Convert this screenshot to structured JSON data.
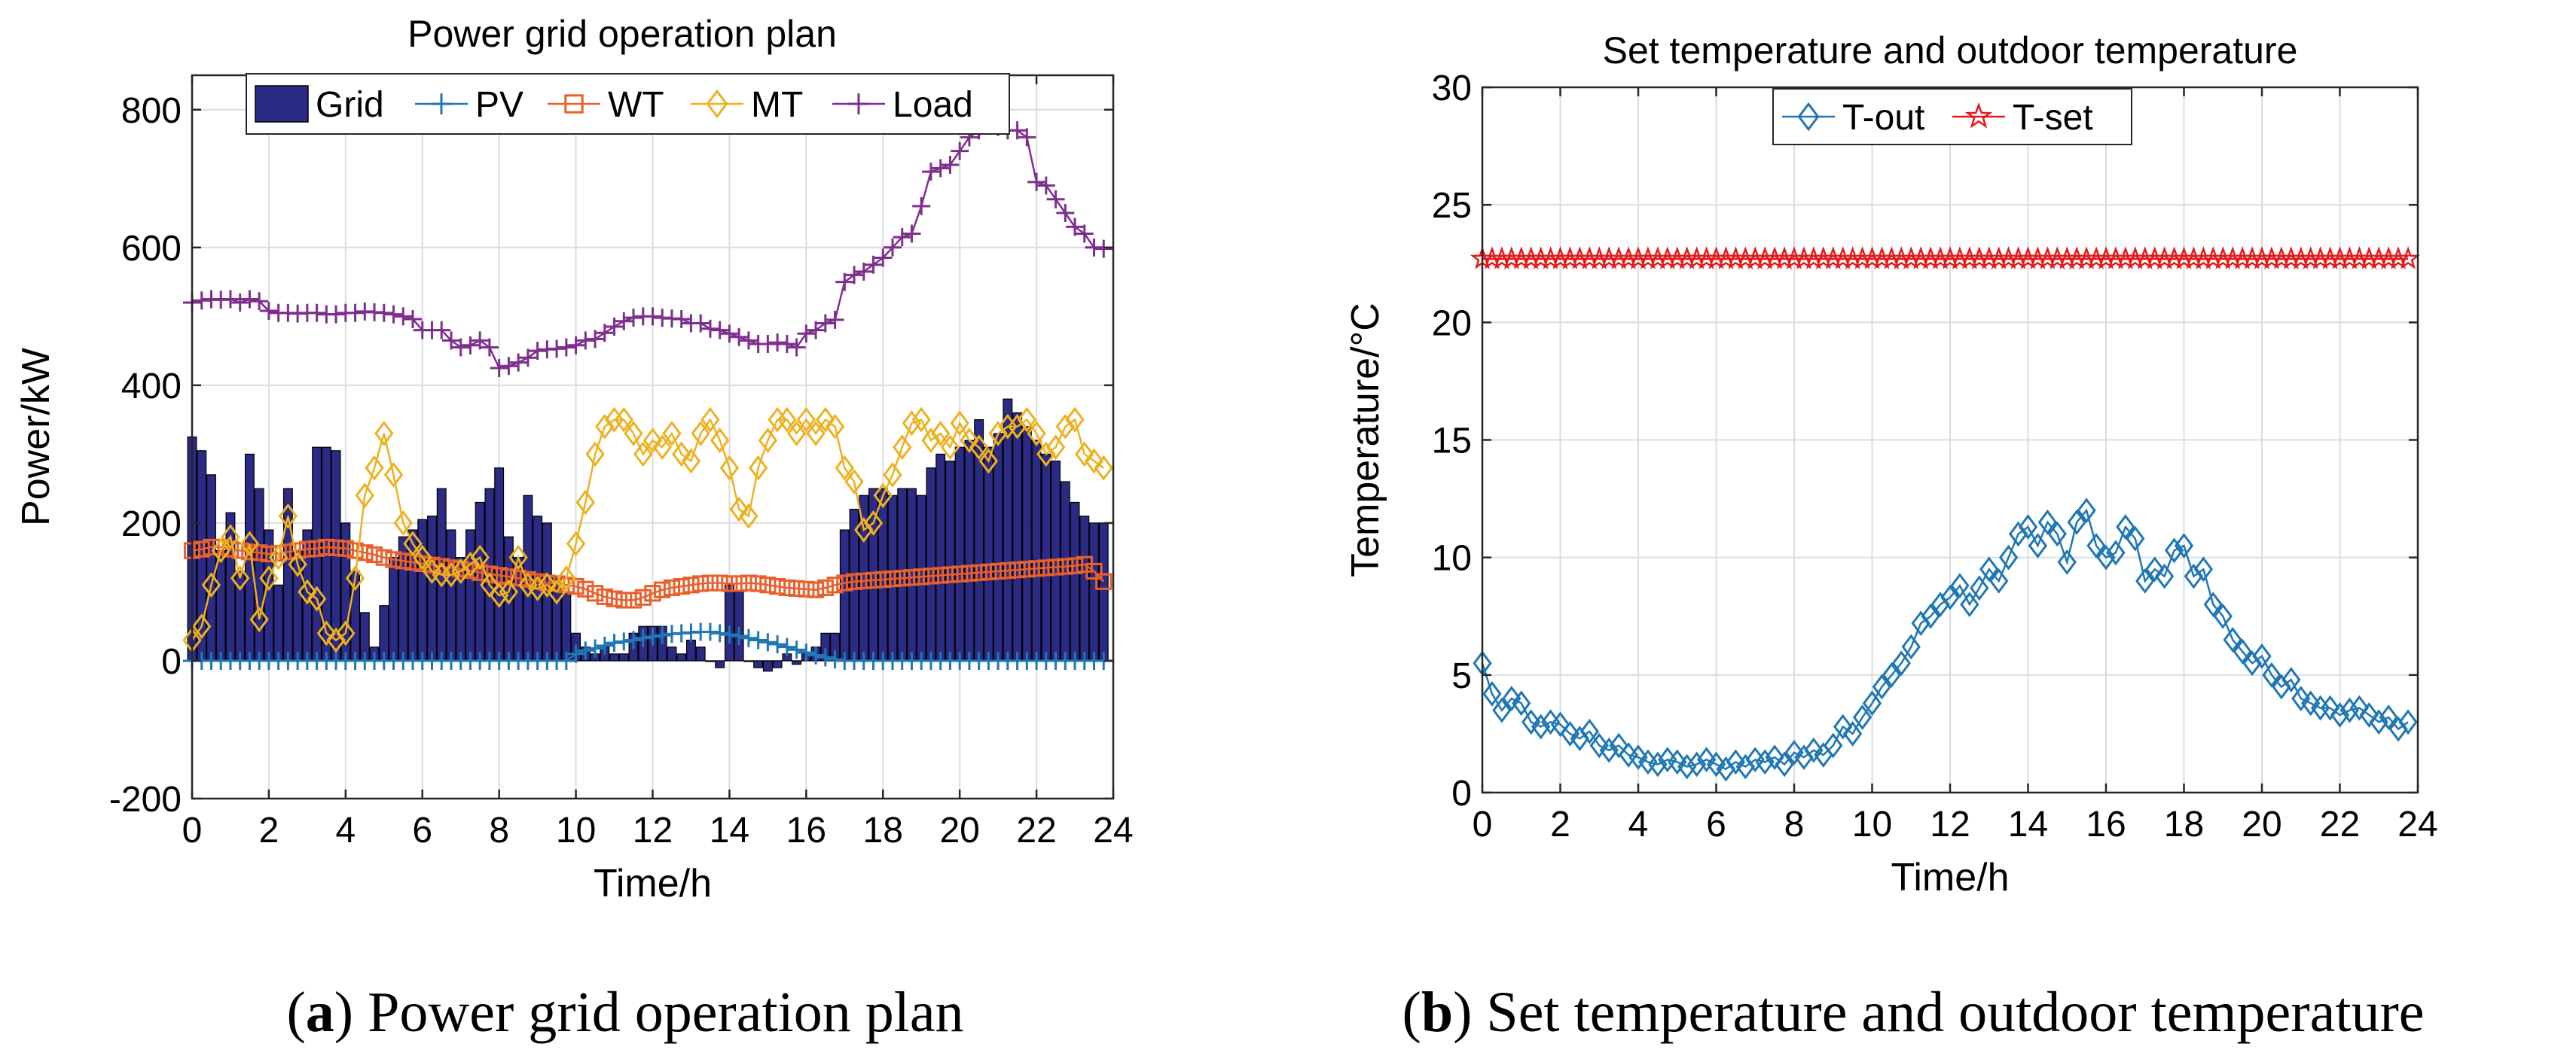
{
  "captions": [
    {
      "open": "(",
      "letter": "a",
      "close": ")",
      "text": " Power grid operation plan"
    },
    {
      "open": "(",
      "letter": "b",
      "close": ")",
      "text": " Set temperature and outdoor temperature"
    }
  ],
  "chart_data": [
    {
      "type": "bar+line",
      "title": "Power grid operation plan",
      "xlabel": "Time/h",
      "ylabel": "Power/kW",
      "xlim": [
        0,
        24
      ],
      "ylim": [
        -200,
        850
      ],
      "xticks": [
        "0",
        "2",
        "4",
        "6",
        "8",
        "10",
        "12",
        "14",
        "16",
        "18",
        "20",
        "22",
        "24"
      ],
      "yticks": [
        "-200",
        "0",
        "200",
        "400",
        "600",
        "800"
      ],
      "grid": true,
      "legend_position": "top",
      "x": [
        0,
        0.25,
        0.5,
        0.75,
        1,
        1.25,
        1.5,
        1.75,
        2,
        2.25,
        2.5,
        2.75,
        3,
        3.25,
        3.5,
        3.75,
        4,
        4.25,
        4.5,
        4.75,
        5,
        5.25,
        5.5,
        5.75,
        6,
        6.25,
        6.5,
        6.75,
        7,
        7.25,
        7.5,
        7.75,
        8,
        8.25,
        8.5,
        8.75,
        9,
        9.25,
        9.5,
        9.75,
        10,
        10.25,
        10.5,
        10.75,
        11,
        11.25,
        11.5,
        11.75,
        12,
        12.25,
        12.5,
        12.75,
        13,
        13.25,
        13.5,
        13.75,
        14,
        14.25,
        14.5,
        14.75,
        15,
        15.25,
        15.5,
        15.75,
        16,
        16.25,
        16.5,
        16.75,
        17,
        17.25,
        17.5,
        17.75,
        18,
        18.25,
        18.5,
        18.75,
        19,
        19.25,
        19.5,
        19.75,
        20,
        20.25,
        20.5,
        20.75,
        21,
        21.25,
        21.5,
        21.75,
        22,
        22.25,
        22.5,
        22.75,
        23,
        23.25,
        23.5,
        23.75
      ],
      "series": [
        {
          "name": "Grid",
          "kind": "bar",
          "color": "#2b2a85",
          "values": [
            325,
            305,
            270,
            160,
            215,
            130,
            300,
            250,
            190,
            110,
            250,
            160,
            190,
            310,
            310,
            305,
            200,
            130,
            70,
            20,
            80,
            150,
            180,
            190,
            205,
            210,
            250,
            190,
            150,
            190,
            230,
            250,
            280,
            180,
            150,
            240,
            210,
            200,
            120,
            100,
            40,
            20,
            10,
            20,
            10,
            10,
            40,
            50,
            50,
            50,
            20,
            10,
            30,
            20,
            0,
            -10,
            110,
            100,
            0,
            -10,
            -15,
            -10,
            10,
            -5,
            10,
            20,
            40,
            40,
            190,
            220,
            240,
            250,
            250,
            240,
            250,
            250,
            240,
            280,
            300,
            290,
            310,
            320,
            350,
            310,
            330,
            380,
            360,
            340,
            320,
            300,
            290,
            260,
            230,
            210,
            200,
            200
          ]
        },
        {
          "name": "PV",
          "kind": "line",
          "color": "#1f77b4",
          "marker": "plus",
          "values": [
            0,
            0,
            0,
            0,
            0,
            0,
            0,
            0,
            0,
            0,
            0,
            0,
            0,
            0,
            0,
            0,
            0,
            0,
            0,
            0,
            0,
            0,
            0,
            0,
            0,
            0,
            0,
            0,
            0,
            0,
            0,
            0,
            0,
            0,
            0,
            0,
            0,
            0,
            0,
            0,
            10,
            15,
            18,
            22,
            26,
            28,
            30,
            33,
            35,
            37,
            39,
            40,
            41,
            42,
            42,
            40,
            38,
            36,
            33,
            30,
            27,
            24,
            20,
            16,
            12,
            8,
            5,
            2,
            0,
            0,
            0,
            0,
            0,
            0,
            0,
            0,
            0,
            0,
            0,
            0,
            0,
            0,
            0,
            0,
            0,
            0,
            0,
            0,
            0,
            0,
            0,
            0,
            0,
            0,
            0,
            0
          ]
        },
        {
          "name": "WT",
          "kind": "line",
          "color": "#e8602c",
          "marker": "square",
          "values": [
            160,
            162,
            165,
            165,
            162,
            160,
            158,
            157,
            155,
            156,
            158,
            160,
            162,
            163,
            165,
            164,
            163,
            160,
            157,
            154,
            150,
            147,
            145,
            143,
            141,
            139,
            137,
            135,
            133,
            131,
            128,
            126,
            124,
            122,
            120,
            118,
            115,
            113,
            112,
            110,
            108,
            104,
            98,
            93,
            90,
            88,
            88,
            92,
            98,
            103,
            106,
            108,
            110,
            112,
            113,
            113,
            112,
            112,
            113,
            112,
            110,
            108,
            106,
            105,
            104,
            103,
            106,
            110,
            113,
            115,
            116,
            117,
            118,
            119,
            120,
            121,
            122,
            123,
            124,
            125,
            126,
            127,
            128,
            129,
            130,
            131,
            132,
            133,
            134,
            135,
            136,
            137,
            138,
            140,
            130,
            115
          ]
        },
        {
          "name": "MT",
          "kind": "line",
          "color": "#edb120",
          "marker": "diamond",
          "values": [
            30,
            50,
            110,
            160,
            180,
            120,
            170,
            60,
            120,
            150,
            210,
            140,
            100,
            90,
            40,
            30,
            40,
            120,
            240,
            280,
            330,
            270,
            200,
            170,
            150,
            130,
            125,
            125,
            130,
            140,
            150,
            110,
            95,
            100,
            150,
            110,
            105,
            110,
            100,
            120,
            170,
            230,
            300,
            340,
            350,
            350,
            330,
            300,
            320,
            310,
            330,
            300,
            290,
            330,
            350,
            320,
            280,
            220,
            210,
            280,
            320,
            350,
            350,
            330,
            350,
            330,
            350,
            340,
            280,
            260,
            190,
            200,
            240,
            270,
            310,
            345,
            350,
            320,
            330,
            310,
            345,
            320,
            310,
            290,
            330,
            340,
            340,
            350,
            330,
            300,
            310,
            340,
            350,
            300,
            290,
            280
          ]
        },
        {
          "name": "Load",
          "kind": "line",
          "color": "#7e2f8e",
          "marker": "plus",
          "values": [
            520,
            523,
            525,
            524,
            525,
            520,
            525,
            522,
            508,
            505,
            505,
            504,
            505,
            505,
            503,
            503,
            505,
            505,
            507,
            506,
            505,
            503,
            500,
            496,
            480,
            480,
            480,
            465,
            455,
            458,
            465,
            455,
            425,
            428,
            433,
            440,
            450,
            452,
            453,
            455,
            458,
            465,
            467,
            476,
            485,
            493,
            498,
            500,
            500,
            498,
            497,
            496,
            490,
            490,
            482,
            480,
            475,
            470,
            465,
            460,
            460,
            462,
            460,
            455,
            475,
            480,
            490,
            495,
            550,
            560,
            565,
            575,
            585,
            600,
            615,
            620,
            660,
            710,
            715,
            720,
            740,
            760,
            770,
            778,
            775,
            770,
            770,
            760,
            695,
            690,
            670,
            650,
            630,
            620,
            600,
            598
          ]
        }
      ]
    },
    {
      "type": "line",
      "title": "Set temperature and outdoor temperature",
      "xlabel": "Time/h",
      "ylabel": "Temperature/°C",
      "xlim": [
        0,
        24
      ],
      "ylim": [
        0,
        30
      ],
      "xticks": [
        "0",
        "2",
        "4",
        "6",
        "8",
        "10",
        "12",
        "14",
        "16",
        "18",
        "20",
        "22",
        "24"
      ],
      "yticks": [
        "0",
        "5",
        "10",
        "15",
        "20",
        "25",
        "30"
      ],
      "grid": true,
      "legend_position": "top",
      "x": [
        0,
        0.25,
        0.5,
        0.75,
        1,
        1.25,
        1.5,
        1.75,
        2,
        2.25,
        2.5,
        2.75,
        3,
        3.25,
        3.5,
        3.75,
        4,
        4.25,
        4.5,
        4.75,
        5,
        5.25,
        5.5,
        5.75,
        6,
        6.25,
        6.5,
        6.75,
        7,
        7.25,
        7.5,
        7.75,
        8,
        8.25,
        8.5,
        8.75,
        9,
        9.25,
        9.5,
        9.75,
        10,
        10.25,
        10.5,
        10.75,
        11,
        11.25,
        11.5,
        11.75,
        12,
        12.25,
        12.5,
        12.75,
        13,
        13.25,
        13.5,
        13.75,
        14,
        14.25,
        14.5,
        14.75,
        15,
        15.25,
        15.5,
        15.75,
        16,
        16.25,
        16.5,
        16.75,
        17,
        17.25,
        17.5,
        17.75,
        18,
        18.25,
        18.5,
        18.75,
        19,
        19.25,
        19.5,
        19.75,
        20,
        20.25,
        20.5,
        20.75,
        21,
        21.25,
        21.5,
        21.75,
        22,
        22.25,
        22.5,
        22.75,
        23,
        23.25,
        23.5,
        23.75
      ],
      "series": [
        {
          "name": "T-out",
          "color": "#1f77b4",
          "marker": "diamond",
          "values": [
            5.5,
            4.2,
            3.5,
            4,
            3.8,
            3,
            2.8,
            3,
            2.9,
            2.5,
            2.3,
            2.6,
            2,
            1.8,
            2,
            1.6,
            1.5,
            1.3,
            1.2,
            1.4,
            1.3,
            1.1,
            1.2,
            1.4,
            1.2,
            1,
            1.3,
            1.1,
            1.4,
            1.3,
            1.5,
            1.2,
            1.7,
            1.5,
            1.8,
            1.6,
            2,
            2.8,
            2.5,
            3.2,
            3.8,
            4.5,
            5,
            5.5,
            6.2,
            7.2,
            7.5,
            8,
            8.3,
            8.8,
            8,
            8.7,
            9.5,
            9,
            10,
            11,
            11.3,
            10.5,
            11.5,
            11,
            9.8,
            11.5,
            12,
            10.5,
            10,
            10.2,
            11.3,
            10.8,
            9,
            9.5,
            9.2,
            10.3,
            10.5,
            9.2,
            9.5,
            8,
            7.5,
            6.5,
            6,
            5.5,
            5.8,
            5,
            4.5,
            4.8,
            4,
            3.8,
            3.6,
            3.6,
            3.3,
            3.5,
            3.6,
            3.3,
            3,
            3.2,
            2.7,
            3
          ]
        },
        {
          "name": "T-set",
          "color": "#e31a1c",
          "marker": "star",
          "values": [
            22.7,
            22.7,
            22.7,
            22.7,
            22.7,
            22.7,
            22.7,
            22.7,
            22.7,
            22.7,
            22.7,
            22.7,
            22.7,
            22.7,
            22.7,
            22.7,
            22.7,
            22.7,
            22.7,
            22.7,
            22.7,
            22.7,
            22.7,
            22.7,
            22.7,
            22.7,
            22.7,
            22.7,
            22.7,
            22.7,
            22.7,
            22.7,
            22.7,
            22.7,
            22.7,
            22.7,
            22.7,
            22.7,
            22.7,
            22.7,
            22.7,
            22.7,
            22.7,
            22.7,
            22.7,
            22.7,
            22.7,
            22.7,
            22.7,
            22.7,
            22.7,
            22.7,
            22.7,
            22.7,
            22.7,
            22.7,
            22.7,
            22.7,
            22.7,
            22.7,
            22.7,
            22.7,
            22.7,
            22.7,
            22.7,
            22.7,
            22.7,
            22.7,
            22.7,
            22.7,
            22.7,
            22.7,
            22.7,
            22.7,
            22.7,
            22.7,
            22.7,
            22.7,
            22.7,
            22.7,
            22.7,
            22.7,
            22.7,
            22.7,
            22.7,
            22.7,
            22.7,
            22.7,
            22.7,
            22.7,
            22.7,
            22.7,
            22.7,
            22.7,
            22.7,
            22.7
          ]
        }
      ]
    }
  ]
}
